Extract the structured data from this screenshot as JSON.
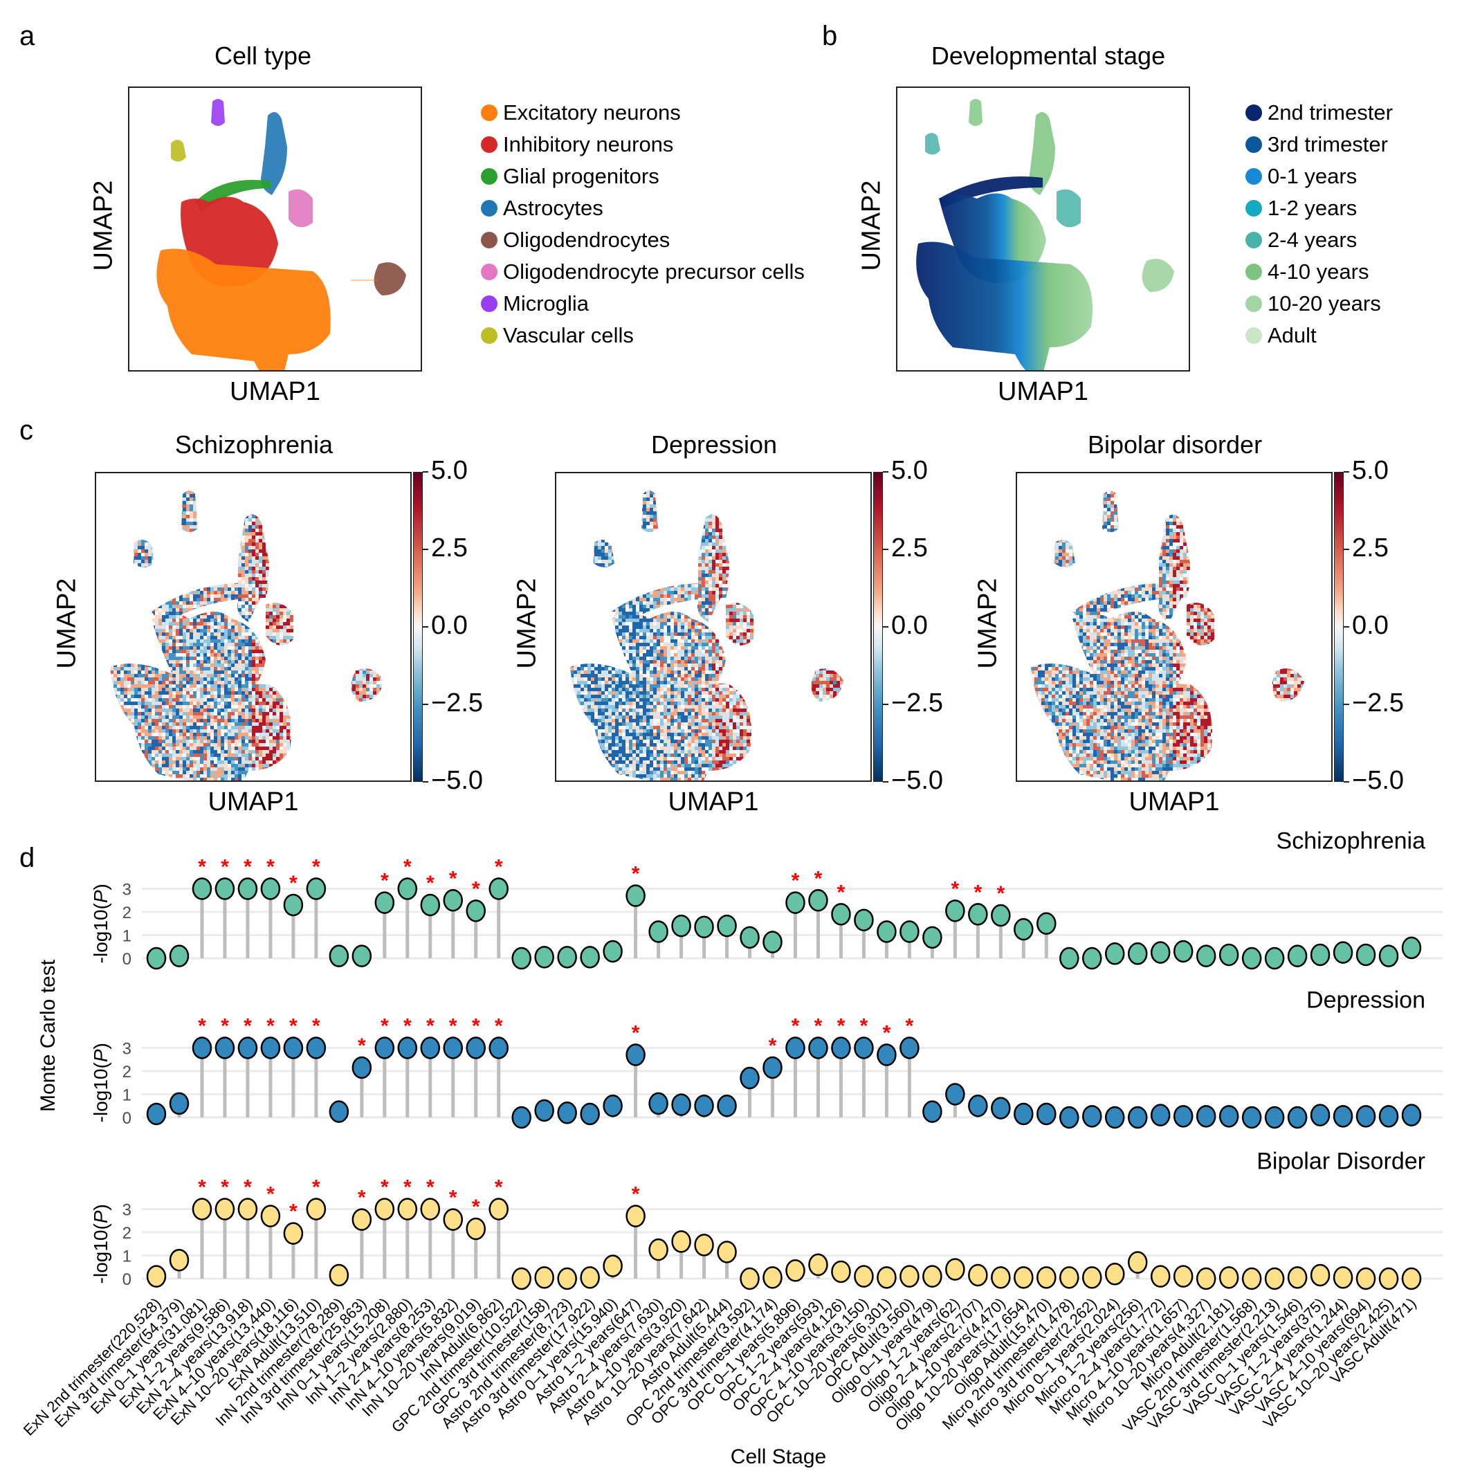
{
  "panels": {
    "a": {
      "letter": "a",
      "title": "Cell type",
      "xlabel": "UMAP1",
      "ylabel": "UMAP2",
      "legend": [
        {
          "label": "Excitatory neurons",
          "color": "#ff7f0e"
        },
        {
          "label": "Inhibitory neurons",
          "color": "#d62728"
        },
        {
          "label": "Glial progenitors",
          "color": "#2ca02c"
        },
        {
          "label": "Astrocytes",
          "color": "#1f77b4"
        },
        {
          "label": "Oligodendrocytes",
          "color": "#8c564b"
        },
        {
          "label": "Oligodendrocyte precursor cells",
          "color": "#e377c2"
        },
        {
          "label": "Microglia",
          "color": "#9a3cf2"
        },
        {
          "label": "Vascular cells",
          "color": "#bcbd22"
        }
      ]
    },
    "b": {
      "letter": "b",
      "title": "Developmental stage",
      "xlabel": "UMAP1",
      "ylabel": "UMAP2",
      "legend": [
        {
          "label": "2nd trimester",
          "color": "#08256e"
        },
        {
          "label": "3rd trimester",
          "color": "#0c579c"
        },
        {
          "label": "0-1 years",
          "color": "#1589d2"
        },
        {
          "label": "1-2 years",
          "color": "#13a9c2"
        },
        {
          "label": "2-4 years",
          "color": "#48b3a8"
        },
        {
          "label": "4-10 years",
          "color": "#7cc47f"
        },
        {
          "label": "10-20 years",
          "color": "#a3d5a4"
        },
        {
          "label": "Adult",
          "color": "#c9e6c7"
        }
      ]
    },
    "c": {
      "letter": "c",
      "plots": [
        {
          "title": "Schizophrenia",
          "xlabel": "UMAP1",
          "ylabel": "UMAP2"
        },
        {
          "title": "Depression",
          "xlabel": "UMAP1",
          "ylabel": "UMAP2"
        },
        {
          "title": "Bipolar disorder",
          "xlabel": "UMAP1",
          "ylabel": "UMAP2"
        }
      ],
      "colorbar": {
        "ticks": [
          "5.0",
          "2.5",
          "0.0",
          "−2.5",
          "−5.0"
        ],
        "range": [
          -5,
          5
        ],
        "colormap": "RdBu_r"
      }
    },
    "d": {
      "letter": "d",
      "ylabel_outer": "Monte Carlo test",
      "ylabel": "-log10(",
      "ylabel_italic": "P",
      "ylabel_close": ")",
      "xlabel": "Cell Stage",
      "yticks": [
        "0",
        "1",
        "2",
        "3"
      ],
      "sig_marker": "*"
    }
  },
  "chart_data": {
    "type": "lollipop",
    "xlabel": "Cell Stage",
    "ylabel": "-log10(P)",
    "ylim": [
      0,
      3
    ],
    "yticks": [
      0,
      1,
      2,
      3
    ],
    "grid": true,
    "significance_color": "#ff0000",
    "stem_color": "#bdbdbd",
    "categories": [
      "ExN 2nd trimester(220,528)",
      "ExN 3rd trimester(54,379)",
      "ExN 0–1 years(31,081)",
      "ExN 1–2 years(9,586)",
      "ExN 2–4 years(13,918)",
      "ExN 4–10 years(13,440)",
      "ExN 10–20 years(18,116)",
      "ExN Adult(13,510)",
      "InN 2nd trimester(78,289)",
      "InN 3rd trimester(25,863)",
      "InN 0–1 years(15,208)",
      "InN 1–2 years(2,880)",
      "InN 2–4 years(8,253)",
      "InN 4–10 years(5,832)",
      "InN 10–20 years(9,019)",
      "InN Adult(6,862)",
      "GPC 2nd trimester(10,522)",
      "GPC 3rd trimester(158)",
      "Astro 2nd trimester(8,723)",
      "Astro 3rd trimester(17,922)",
      "Astro 0–1 years(15,940)",
      "Astro 1–2 years(647)",
      "Astro 2–4 years(7,630)",
      "Astro 4–10 years(3,920)",
      "Astro 10–20 years(7,642)",
      "Astro Adult(5,444)",
      "OPC 2nd trimester(3,592)",
      "OPC 3rd trimester(4,174)",
      "OPC 0–1 years(5,896)",
      "OPC 1–2 years(593)",
      "OPC 2–4 years(4,126)",
      "OPC 4–10 years(3,150)",
      "OPC 10–20 years(6,301)",
      "OPC Adult(3,560)",
      "Oligo 0–1 years(479)",
      "Oligo 1–2 years(62)",
      "Oligo 2–4 years(2,707)",
      "Oligo 4–10 years(4,470)",
      "Oligo 10–20 years(17,654)",
      "Oligo Adult(15,470)",
      "Micro 2nd trimester(1,478)",
      "Micro 3rd trimester(2,262)",
      "Micro 0–1 years(2,024)",
      "Micro 1–2 years(256)",
      "Micro 2–4 years(1,772)",
      "Micro 4–10 years(1,657)",
      "Micro 10–20 years(4,327)",
      "Micro Adult(2,181)",
      "VASC 2nd trimester(1,568)",
      "VASC 3rd trimester(2,213)",
      "VASC 0–1 years(1,546)",
      "VASC 1–2 years(375)",
      "VASC 2–4 years(1,244)",
      "VASC 4–10 years(694)",
      "VASC 10–20 years(2,425)",
      "VASC Adult(471)"
    ],
    "series": [
      {
        "name": "Schizophrenia",
        "color": "#66c2a5",
        "values": [
          0.0,
          0.1,
          3,
          3,
          3,
          3,
          2.3,
          3,
          0.1,
          0.1,
          2.4,
          3,
          2.3,
          2.5,
          2.05,
          3,
          0.0,
          0.05,
          0.05,
          0.05,
          0.3,
          2.7,
          1.15,
          1.4,
          1.35,
          1.4,
          0.9,
          0.7,
          2.4,
          2.5,
          1.9,
          1.65,
          1.15,
          1.15,
          0.9,
          2.05,
          1.9,
          1.85,
          1.25,
          1.5,
          0.0,
          0.0,
          0.2,
          0.2,
          0.25,
          0.3,
          0.1,
          0.15,
          0.0,
          0.0,
          0.1,
          0.15,
          0.25,
          0.15,
          0.1,
          0.45
        ],
        "significant": [
          3,
          4,
          5,
          6,
          7,
          8,
          11,
          12,
          13,
          14,
          15,
          16,
          22,
          29,
          30,
          31,
          36,
          37,
          38
        ]
      },
      {
        "name": "Depression",
        "color": "#3288bd",
        "values": [
          0.15,
          0.6,
          3,
          3,
          3,
          3,
          3,
          3,
          0.25,
          2.15,
          3,
          3,
          3,
          3,
          3,
          3,
          0.0,
          0.3,
          0.2,
          0.15,
          0.5,
          2.7,
          0.6,
          0.55,
          0.5,
          0.5,
          1.7,
          2.15,
          3,
          3,
          3,
          3,
          2.7,
          3,
          0.25,
          1.0,
          0.5,
          0.4,
          0.15,
          0.15,
          0.0,
          0.05,
          0.0,
          0.0,
          0.1,
          0.05,
          0.05,
          0.05,
          0.0,
          0.0,
          0.0,
          0.1,
          0.05,
          0.05,
          0.05,
          0.1
        ],
        "significant": [
          3,
          4,
          5,
          6,
          7,
          8,
          10,
          11,
          12,
          13,
          14,
          15,
          16,
          22,
          28,
          29,
          30,
          31,
          32,
          33,
          34
        ]
      },
      {
        "name": "Bipolar Disorder",
        "color": "#fee08b",
        "values": [
          0.1,
          0.8,
          3,
          3,
          3,
          2.7,
          1.95,
          3,
          0.15,
          2.55,
          3,
          3,
          3,
          2.55,
          2.15,
          3,
          0.0,
          0.05,
          0.0,
          0.05,
          0.55,
          2.7,
          1.25,
          1.6,
          1.45,
          1.15,
          0.0,
          0.05,
          0.35,
          0.6,
          0.3,
          0.1,
          0.05,
          0.1,
          0.1,
          0.4,
          0.15,
          0.05,
          0.05,
          0.05,
          0.05,
          0.05,
          0.2,
          0.7,
          0.1,
          0.1,
          0.0,
          0.05,
          0.0,
          0.0,
          0.05,
          0.15,
          0.05,
          0.0,
          0.0,
          0.0
        ],
        "significant": [
          3,
          4,
          5,
          6,
          7,
          8,
          10,
          11,
          12,
          13,
          14,
          15,
          16,
          22
        ]
      }
    ]
  }
}
